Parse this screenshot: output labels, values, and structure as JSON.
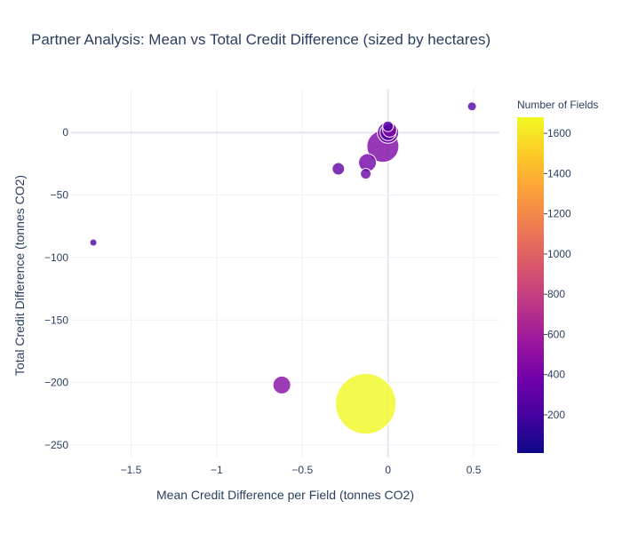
{
  "chart_data": {
    "type": "scatter",
    "title": "Partner Analysis: Mean vs Total Credit Difference (sized by hectares)",
    "xlabel": "Mean Credit Difference per Field (tonnes CO2)",
    "ylabel": "Total Credit Difference (tonnes CO2)",
    "xlim": [
      -1.85,
      0.65
    ],
    "ylim": [
      -260,
      35
    ],
    "xticks": [
      -1.5,
      -1,
      -0.5,
      0,
      0.5
    ],
    "xtick_labels": [
      "−1.5",
      "−1",
      "−0.5",
      "0",
      "0.5"
    ],
    "yticks": [
      0,
      -50,
      -100,
      -150,
      -200,
      -250
    ],
    "ytick_labels": [
      "0",
      "−50",
      "−100",
      "−150",
      "−200",
      "−250"
    ],
    "grid": true,
    "colorbar": {
      "title": "Number of Fields",
      "range": [
        10,
        1680
      ],
      "ticks": [
        200,
        400,
        600,
        800,
        1000,
        1200,
        1400,
        1600
      ],
      "tick_labels": [
        "200",
        "400",
        "600",
        "800",
        "1000",
        "1200",
        "1400",
        "1600"
      ],
      "colorscale": [
        "#0d0887",
        "#46039f",
        "#7201a8",
        "#9c179e",
        "#bd3786",
        "#d8576b",
        "#ed7953",
        "#fb9f3a",
        "#fdca26",
        "#f0f921"
      ]
    },
    "points": [
      {
        "x": 0.49,
        "y": 21,
        "fields": 260,
        "size": 5
      },
      {
        "x": -1.72,
        "y": -88,
        "fields": 230,
        "size": 4
      },
      {
        "x": -0.29,
        "y": -29,
        "fields": 300,
        "size": 7
      },
      {
        "x": -0.13,
        "y": -33,
        "fields": 330,
        "size": 6
      },
      {
        "x": -0.12,
        "y": -24,
        "fields": 380,
        "size": 10
      },
      {
        "x": -0.03,
        "y": -11,
        "fields": 430,
        "size": 18
      },
      {
        "x": 0.0,
        "y": 0,
        "fields": 370,
        "size": 12
      },
      {
        "x": 0.0,
        "y": 0,
        "fields": 250,
        "size": 9
      },
      {
        "x": 0.01,
        "y": 2,
        "fields": 430,
        "size": 8
      },
      {
        "x": 0.0,
        "y": 5,
        "fields": 260,
        "size": 6
      },
      {
        "x": -0.62,
        "y": -202,
        "fields": 460,
        "size": 10
      },
      {
        "x": -0.13,
        "y": -217,
        "fields": 1680,
        "size": 34
      }
    ]
  }
}
